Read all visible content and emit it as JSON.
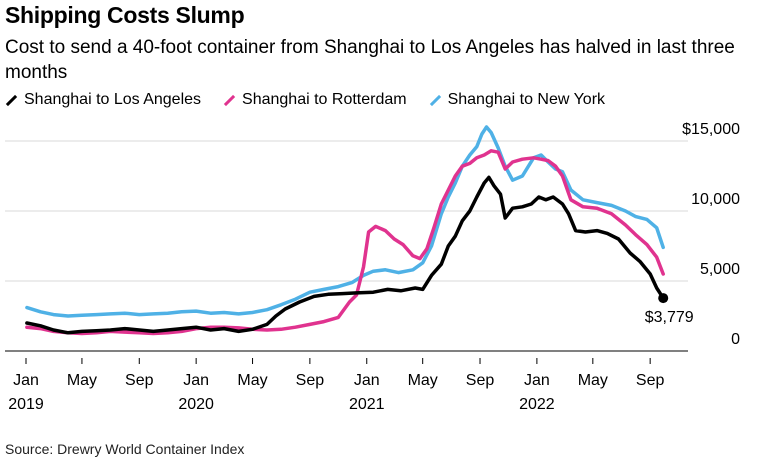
{
  "chart_data": {
    "type": "line",
    "title": "Shipping Costs Slump",
    "subtitle": "Cost to send a 40-foot container from Shanghai to Los Angeles has halved in last three months",
    "source": "Source: Drewry World Container Index",
    "ylim": [
      0,
      15000
    ],
    "yticks": [
      {
        "value": 15000,
        "label": "$15,000"
      },
      {
        "value": 10000,
        "label": "10,000"
      },
      {
        "value": 5000,
        "label": "5,000"
      },
      {
        "value": 0,
        "label": "0"
      }
    ],
    "xlim": [
      "2019-01-01",
      "2022-10-20"
    ],
    "xticks": [
      {
        "date": "2019-01-01",
        "label": "Jan",
        "year": "2019"
      },
      {
        "date": "2019-05-01",
        "label": "May",
        "year": ""
      },
      {
        "date": "2019-09-01",
        "label": "Sep",
        "year": ""
      },
      {
        "date": "2020-01-01",
        "label": "Jan",
        "year": "2020"
      },
      {
        "date": "2020-05-01",
        "label": "May",
        "year": ""
      },
      {
        "date": "2020-09-01",
        "label": "Sep",
        "year": ""
      },
      {
        "date": "2021-01-01",
        "label": "Jan",
        "year": "2021"
      },
      {
        "date": "2021-05-01",
        "label": "May",
        "year": ""
      },
      {
        "date": "2021-09-01",
        "label": "Sep",
        "year": ""
      },
      {
        "date": "2022-01-01",
        "label": "Jan",
        "year": "2022"
      },
      {
        "date": "2022-05-01",
        "label": "May",
        "year": ""
      },
      {
        "date": "2022-09-01",
        "label": "Sep",
        "year": ""
      }
    ],
    "end_label": {
      "series": "Shanghai to Los Angeles",
      "date": "2022-09-29",
      "value": 3779,
      "text": "$3,779"
    },
    "series": [
      {
        "name": "Shanghai to Los Angeles",
        "color": "#000000",
        "points": [
          [
            "2019-01-03",
            2000
          ],
          [
            "2019-02-01",
            1800
          ],
          [
            "2019-03-01",
            1500
          ],
          [
            "2019-04-01",
            1300
          ],
          [
            "2019-05-01",
            1400
          ],
          [
            "2019-06-01",
            1450
          ],
          [
            "2019-07-01",
            1500
          ],
          [
            "2019-08-01",
            1600
          ],
          [
            "2019-09-01",
            1500
          ],
          [
            "2019-10-01",
            1400
          ],
          [
            "2019-11-01",
            1500
          ],
          [
            "2019-12-01",
            1600
          ],
          [
            "2020-01-01",
            1700
          ],
          [
            "2020-02-01",
            1500
          ],
          [
            "2020-03-01",
            1600
          ],
          [
            "2020-04-01",
            1400
          ],
          [
            "2020-05-01",
            1550
          ],
          [
            "2020-06-01",
            1900
          ],
          [
            "2020-06-20",
            2500
          ],
          [
            "2020-07-10",
            3000
          ],
          [
            "2020-08-10",
            3500
          ],
          [
            "2020-09-10",
            3900
          ],
          [
            "2020-10-10",
            4050
          ],
          [
            "2020-11-10",
            4100
          ],
          [
            "2020-12-10",
            4150
          ],
          [
            "2021-01-15",
            4200
          ],
          [
            "2021-02-15",
            4400
          ],
          [
            "2021-03-15",
            4300
          ],
          [
            "2021-04-15",
            4500
          ],
          [
            "2021-05-01",
            4400
          ],
          [
            "2021-05-20",
            5400
          ],
          [
            "2021-06-10",
            6200
          ],
          [
            "2021-06-25",
            7500
          ],
          [
            "2021-07-10",
            8200
          ],
          [
            "2021-07-25",
            9300
          ],
          [
            "2021-08-10",
            10000
          ],
          [
            "2021-08-25",
            11000
          ],
          [
            "2021-09-10",
            12000
          ],
          [
            "2021-09-20",
            12400
          ],
          [
            "2021-10-01",
            11800
          ],
          [
            "2021-10-15",
            11200
          ],
          [
            "2021-10-25",
            9500
          ],
          [
            "2021-11-10",
            10200
          ],
          [
            "2021-12-01",
            10300
          ],
          [
            "2021-12-20",
            10500
          ],
          [
            "2022-01-05",
            11000
          ],
          [
            "2022-01-20",
            10800
          ],
          [
            "2022-02-05",
            11000
          ],
          [
            "2022-02-25",
            10500
          ],
          [
            "2022-03-10",
            9800
          ],
          [
            "2022-03-25",
            8600
          ],
          [
            "2022-04-15",
            8500
          ],
          [
            "2022-05-10",
            8600
          ],
          [
            "2022-06-01",
            8400
          ],
          [
            "2022-06-25",
            8000
          ],
          [
            "2022-07-20",
            7000
          ],
          [
            "2022-08-10",
            6400
          ],
          [
            "2022-09-01",
            5500
          ],
          [
            "2022-09-15",
            4500
          ],
          [
            "2022-09-29",
            3779
          ]
        ]
      },
      {
        "name": "Shanghai to Rotterdam",
        "color": "#e0338f",
        "points": [
          [
            "2019-01-03",
            1700
          ],
          [
            "2019-02-01",
            1600
          ],
          [
            "2019-03-01",
            1400
          ],
          [
            "2019-04-01",
            1300
          ],
          [
            "2019-05-01",
            1250
          ],
          [
            "2019-06-01",
            1300
          ],
          [
            "2019-07-01",
            1400
          ],
          [
            "2019-08-01",
            1350
          ],
          [
            "2019-09-01",
            1300
          ],
          [
            "2019-10-01",
            1250
          ],
          [
            "2019-11-01",
            1300
          ],
          [
            "2019-12-01",
            1400
          ],
          [
            "2020-01-01",
            1600
          ],
          [
            "2020-02-01",
            1700
          ],
          [
            "2020-03-01",
            1700
          ],
          [
            "2020-04-01",
            1650
          ],
          [
            "2020-05-01",
            1550
          ],
          [
            "2020-06-01",
            1500
          ],
          [
            "2020-07-01",
            1550
          ],
          [
            "2020-08-01",
            1700
          ],
          [
            "2020-09-01",
            1900
          ],
          [
            "2020-10-01",
            2100
          ],
          [
            "2020-11-01",
            2400
          ],
          [
            "2020-11-25",
            3500
          ],
          [
            "2020-12-10",
            4000
          ],
          [
            "2020-12-25",
            6000
          ],
          [
            "2021-01-05",
            8500
          ],
          [
            "2021-01-20",
            8900
          ],
          [
            "2021-02-10",
            8600
          ],
          [
            "2021-03-01",
            8000
          ],
          [
            "2021-03-20",
            7600
          ],
          [
            "2021-04-10",
            6800
          ],
          [
            "2021-04-25",
            6600
          ],
          [
            "2021-05-10",
            7300
          ],
          [
            "2021-05-25",
            8800
          ],
          [
            "2021-06-10",
            10500
          ],
          [
            "2021-06-25",
            11500
          ],
          [
            "2021-07-10",
            12500
          ],
          [
            "2021-07-25",
            13200
          ],
          [
            "2021-08-10",
            13400
          ],
          [
            "2021-08-25",
            13800
          ],
          [
            "2021-09-10",
            14000
          ],
          [
            "2021-09-25",
            14300
          ],
          [
            "2021-10-10",
            14200
          ],
          [
            "2021-10-25",
            13000
          ],
          [
            "2021-11-10",
            13500
          ],
          [
            "2021-12-01",
            13700
          ],
          [
            "2021-12-25",
            13800
          ],
          [
            "2022-01-10",
            13700
          ],
          [
            "2022-01-25",
            13600
          ],
          [
            "2022-02-10",
            13200
          ],
          [
            "2022-02-25",
            12500
          ],
          [
            "2022-03-15",
            10800
          ],
          [
            "2022-04-10",
            10300
          ],
          [
            "2022-05-10",
            10200
          ],
          [
            "2022-06-10",
            9800
          ],
          [
            "2022-07-10",
            9000
          ],
          [
            "2022-08-01",
            8300
          ],
          [
            "2022-08-25",
            7600
          ],
          [
            "2022-09-15",
            6700
          ],
          [
            "2022-09-29",
            5500
          ]
        ]
      },
      {
        "name": "Shanghai to New York",
        "color": "#4fb1e6",
        "points": [
          [
            "2019-01-03",
            3100
          ],
          [
            "2019-02-01",
            2800
          ],
          [
            "2019-03-01",
            2600
          ],
          [
            "2019-04-01",
            2500
          ],
          [
            "2019-05-01",
            2550
          ],
          [
            "2019-06-01",
            2600
          ],
          [
            "2019-07-01",
            2650
          ],
          [
            "2019-08-01",
            2700
          ],
          [
            "2019-09-01",
            2600
          ],
          [
            "2019-10-01",
            2650
          ],
          [
            "2019-11-01",
            2700
          ],
          [
            "2019-12-01",
            2800
          ],
          [
            "2020-01-01",
            2850
          ],
          [
            "2020-02-01",
            2700
          ],
          [
            "2020-03-01",
            2750
          ],
          [
            "2020-04-01",
            2650
          ],
          [
            "2020-05-01",
            2750
          ],
          [
            "2020-06-01",
            2950
          ],
          [
            "2020-07-01",
            3300
          ],
          [
            "2020-08-01",
            3700
          ],
          [
            "2020-09-01",
            4200
          ],
          [
            "2020-10-01",
            4400
          ],
          [
            "2020-11-01",
            4600
          ],
          [
            "2020-12-01",
            4900
          ],
          [
            "2020-12-25",
            5400
          ],
          [
            "2021-01-15",
            5700
          ],
          [
            "2021-02-10",
            5800
          ],
          [
            "2021-03-10",
            5600
          ],
          [
            "2021-04-10",
            5800
          ],
          [
            "2021-05-01",
            6300
          ],
          [
            "2021-05-20",
            7500
          ],
          [
            "2021-06-10",
            9800
          ],
          [
            "2021-06-25",
            11000
          ],
          [
            "2021-07-10",
            12000
          ],
          [
            "2021-07-25",
            13200
          ],
          [
            "2021-08-10",
            14000
          ],
          [
            "2021-08-25",
            14600
          ],
          [
            "2021-09-05",
            15500
          ],
          [
            "2021-09-15",
            16000
          ],
          [
            "2021-09-25",
            15600
          ],
          [
            "2021-10-10",
            14500
          ],
          [
            "2021-10-25",
            13200
          ],
          [
            "2021-11-10",
            12200
          ],
          [
            "2021-12-01",
            12500
          ],
          [
            "2021-12-25",
            13800
          ],
          [
            "2022-01-10",
            14000
          ],
          [
            "2022-01-25",
            13500
          ],
          [
            "2022-02-10",
            13000
          ],
          [
            "2022-02-25",
            12800
          ],
          [
            "2022-03-15",
            11500
          ],
          [
            "2022-04-10",
            10800
          ],
          [
            "2022-05-10",
            10600
          ],
          [
            "2022-06-10",
            10400
          ],
          [
            "2022-07-10",
            10000
          ],
          [
            "2022-08-01",
            9600
          ],
          [
            "2022-08-25",
            9400
          ],
          [
            "2022-09-15",
            8800
          ],
          [
            "2022-09-29",
            7400
          ]
        ]
      }
    ]
  }
}
